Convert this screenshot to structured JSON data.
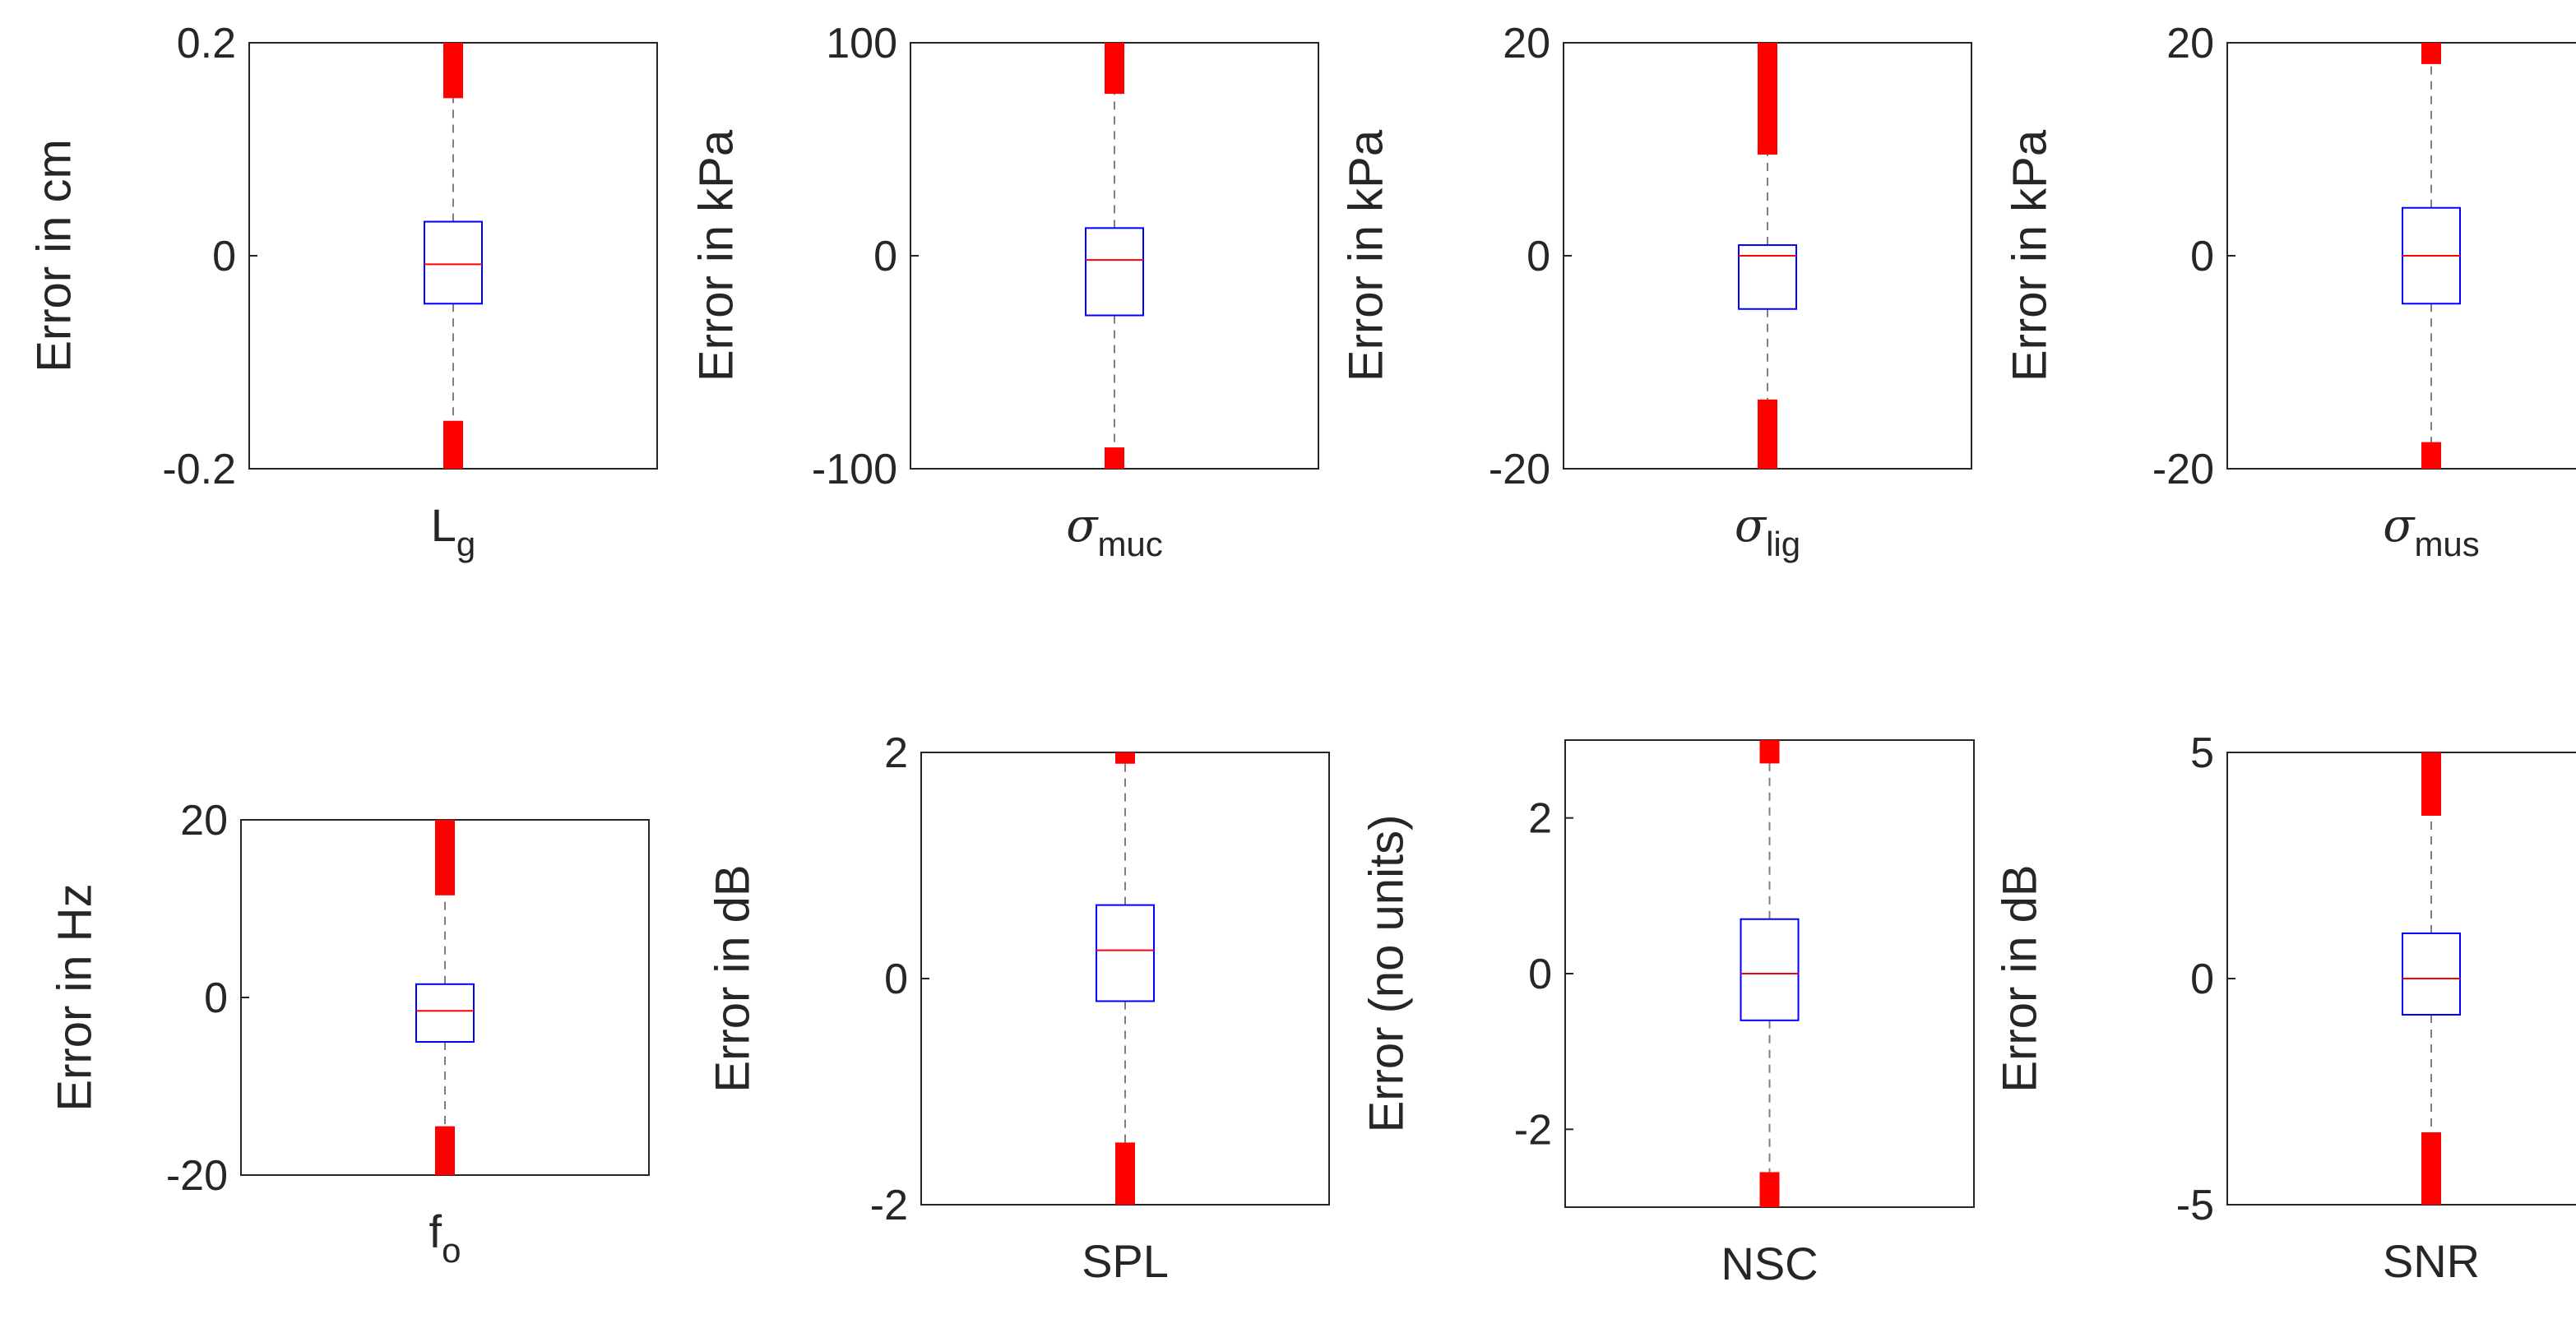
{
  "chart_data": [
    {
      "type": "box",
      "xlabel": {
        "main": "L",
        "sub": "g"
      },
      "ylabel": "Error in cm",
      "ylim": [
        -0.2,
        0.2
      ],
      "yticks": [
        -0.2,
        0,
        0.2
      ],
      "ytick_labels": [
        "-0.2",
        "0",
        "0.2"
      ],
      "box": {
        "q1": -0.045,
        "median": -0.008,
        "q3": 0.032,
        "whisker_low": -0.155,
        "whisker_high": 0.148
      },
      "outliers": {
        "low": [
          -0.2,
          -0.155
        ],
        "high": [
          0.148,
          0.2
        ]
      }
    },
    {
      "type": "box",
      "xlabel": {
        "main": "σ",
        "sub": "muc"
      },
      "ylabel": "Error in kPa",
      "ylim": [
        -100,
        100
      ],
      "yticks": [
        -100,
        0,
        100
      ],
      "ytick_labels": [
        "-100",
        "0",
        "100"
      ],
      "box": {
        "q1": -28,
        "median": -2,
        "q3": 13,
        "whisker_low": -90,
        "whisker_high": 76
      },
      "outliers": {
        "low": [
          -100,
          -90
        ],
        "high": [
          76,
          100
        ]
      }
    },
    {
      "type": "box",
      "xlabel": {
        "main": "σ",
        "sub": "lig"
      },
      "ylabel": "Error in kPa",
      "ylim": [
        -20,
        20
      ],
      "yticks": [
        -20,
        0,
        20
      ],
      "ytick_labels": [
        "-20",
        "0",
        "20"
      ],
      "box": {
        "q1": -5,
        "median": 0,
        "q3": 1,
        "whisker_low": -13.5,
        "whisker_high": 9.5
      },
      "outliers": {
        "low": [
          -20,
          -13.5
        ],
        "high": [
          9.5,
          20
        ]
      }
    },
    {
      "type": "box",
      "xlabel": {
        "main": "σ",
        "sub": "mus"
      },
      "ylabel": "Error in kPa",
      "ylim": [
        -20,
        20
      ],
      "yticks": [
        -20,
        0,
        20
      ],
      "ytick_labels": [
        "-20",
        "0",
        "20"
      ],
      "box": {
        "q1": -4.5,
        "median": 0,
        "q3": 4.5,
        "whisker_low": -17.5,
        "whisker_high": 18
      },
      "outliers": {
        "low": [
          -20,
          -17.5
        ],
        "high": [
          18,
          20
        ]
      }
    },
    {
      "type": "box",
      "xlabel": {
        "main": "f",
        "sub": "o"
      },
      "ylabel": "Error in Hz",
      "ylim": [
        -20,
        20
      ],
      "yticks": [
        -20,
        0,
        20
      ],
      "ytick_labels": [
        "-20",
        "0",
        "20"
      ],
      "box": {
        "q1": -5,
        "median": -1.5,
        "q3": 1.5,
        "whisker_low": -14.5,
        "whisker_high": 11.5
      },
      "outliers": {
        "low": [
          -20,
          -14.5
        ],
        "high": [
          11.5,
          20
        ]
      }
    },
    {
      "type": "box",
      "xlabel": {
        "main": "SPL",
        "sub": ""
      },
      "ylabel": "Error in dB",
      "ylim": [
        -2,
        2
      ],
      "yticks": [
        -2,
        0,
        2
      ],
      "ytick_labels": [
        "-2",
        "0",
        "2"
      ],
      "box": {
        "q1": -0.2,
        "median": 0.25,
        "q3": 0.65,
        "whisker_low": -1.45,
        "whisker_high": 1.9
      },
      "outliers": {
        "low": [
          -2,
          -1.45
        ],
        "high": [
          1.9,
          2
        ]
      }
    },
    {
      "type": "box",
      "xlabel": {
        "main": "NSC",
        "sub": ""
      },
      "ylabel": "Error (no units)",
      "ylim": [
        -3,
        3
      ],
      "yticks": [
        -2,
        0,
        2
      ],
      "ytick_labels": [
        "-2",
        "0",
        "2"
      ],
      "box": {
        "q1": -0.6,
        "median": 0,
        "q3": 0.7,
        "whisker_low": -2.55,
        "whisker_high": 2.7
      },
      "outliers": {
        "low": [
          -3,
          -2.55
        ],
        "high": [
          2.7,
          3
        ]
      }
    },
    {
      "type": "box",
      "xlabel": {
        "main": "SNR",
        "sub": ""
      },
      "ylabel": "Error in dB",
      "ylim": [
        -5,
        5
      ],
      "yticks": [
        -5,
        0,
        5
      ],
      "ytick_labels": [
        "-5",
        "0",
        "5"
      ],
      "box": {
        "q1": -0.8,
        "median": 0,
        "q3": 1,
        "whisker_low": -3.4,
        "whisker_high": 3.6
      },
      "outliers": {
        "low": [
          -5,
          -3.4
        ],
        "high": [
          3.6,
          5
        ]
      }
    }
  ],
  "colors": {
    "box": "#0000ff",
    "median": "#ff0000",
    "whisker": "#7f7f7f",
    "outlier": "#ff0000",
    "axis": "#262626"
  }
}
